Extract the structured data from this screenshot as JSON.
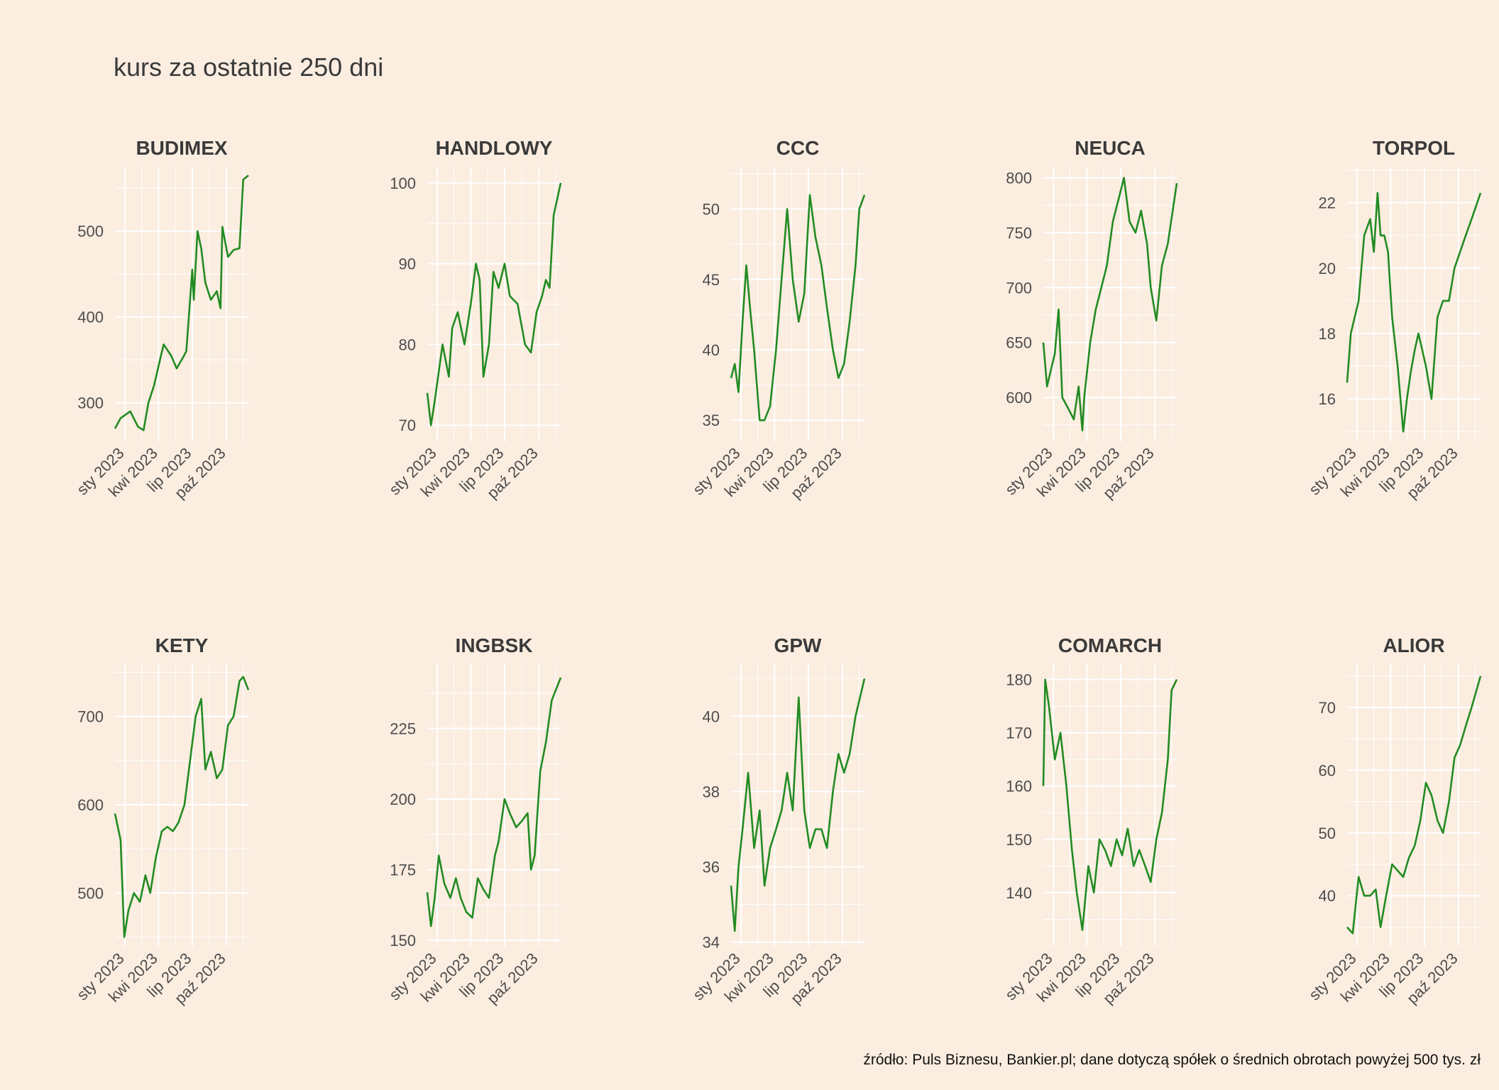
{
  "title": "kurs za ostatnie 250 dni",
  "caption": "źródło: Puls Biznesu, Bankier.pl; dane dotyczą spółek o średnich obrotach powyżej 500 tys. zł",
  "colors": {
    "background": "#fbede0",
    "line": "#228b22",
    "grid": "#ffffff",
    "text": "#4d4d4d",
    "strip": "#3a3a3a"
  },
  "chart_data": [
    {
      "type": "line",
      "title": "BUDIMEX",
      "x_range": [
        "2022-12-05",
        "2023-11-29"
      ],
      "x_ticks": [
        "2023-01-01",
        "2023-04-01",
        "2023-07-01",
        "2023-10-01"
      ],
      "x_tick_labels": [
        "sty 2023",
        "kwi 2023",
        "lip 2023",
        "paź 2023"
      ],
      "ylim": [
        255,
        575
      ],
      "y_ticks": [
        300,
        400,
        500
      ],
      "grid": true,
      "series": [
        {
          "x": [
            "2022-12-05",
            "2022-12-20",
            "2023-01-15",
            "2023-02-05",
            "2023-02-20",
            "2023-03-05",
            "2023-03-20",
            "2023-04-05",
            "2023-04-15",
            "2023-05-05",
            "2023-05-20",
            "2023-06-05",
            "2023-06-15",
            "2023-07-01",
            "2023-07-05",
            "2023-07-15",
            "2023-07-25",
            "2023-08-05",
            "2023-08-20",
            "2023-09-05",
            "2023-09-15",
            "2023-09-20",
            "2023-10-05",
            "2023-10-20",
            "2023-11-05",
            "2023-11-15",
            "2023-11-29"
          ],
          "y": [
            270,
            282,
            290,
            272,
            268,
            300,
            320,
            350,
            368,
            355,
            340,
            352,
            360,
            455,
            420,
            500,
            480,
            440,
            420,
            430,
            410,
            505,
            470,
            478,
            480,
            560,
            565
          ]
        }
      ]
    },
    {
      "type": "line",
      "title": "HANDLOWY",
      "x_range": [
        "2022-12-05",
        "2023-11-29"
      ],
      "x_ticks": [
        "2023-01-01",
        "2023-04-01",
        "2023-07-01",
        "2023-10-01"
      ],
      "x_tick_labels": [
        "sty 2023",
        "kwi 2023",
        "lip 2023",
        "paź 2023"
      ],
      "ylim": [
        68,
        102
      ],
      "y_ticks": [
        70,
        80,
        90,
        100
      ],
      "grid": true,
      "series": [
        {
          "x": [
            "2022-12-05",
            "2022-12-15",
            "2022-12-25",
            "2023-01-15",
            "2023-02-01",
            "2023-02-10",
            "2023-02-25",
            "2023-03-15",
            "2023-04-01",
            "2023-04-15",
            "2023-04-25",
            "2023-05-05",
            "2023-05-20",
            "2023-06-01",
            "2023-06-15",
            "2023-07-01",
            "2023-07-15",
            "2023-08-05",
            "2023-08-25",
            "2023-09-10",
            "2023-09-25",
            "2023-10-10",
            "2023-10-20",
            "2023-10-30",
            "2023-11-10",
            "2023-11-29"
          ],
          "y": [
            74,
            70,
            73,
            80,
            76,
            82,
            84,
            80,
            85,
            90,
            88,
            76,
            80,
            89,
            87,
            90,
            86,
            85,
            80,
            79,
            84,
            86,
            88,
            87,
            96,
            100
          ]
        }
      ]
    },
    {
      "type": "line",
      "title": "CCC",
      "x_range": [
        "2022-12-05",
        "2023-11-29"
      ],
      "x_ticks": [
        "2023-01-01",
        "2023-04-01",
        "2023-07-01",
        "2023-10-01"
      ],
      "x_tick_labels": [
        "sty 2023",
        "kwi 2023",
        "lip 2023",
        "paź 2023"
      ],
      "ylim": [
        33.5,
        53
      ],
      "y_ticks": [
        35,
        40,
        45,
        50
      ],
      "grid": true,
      "series": [
        {
          "x": [
            "2022-12-05",
            "2022-12-15",
            "2022-12-25",
            "2023-01-05",
            "2023-01-15",
            "2023-01-25",
            "2023-02-05",
            "2023-02-20",
            "2023-03-05",
            "2023-03-20",
            "2023-04-05",
            "2023-04-20",
            "2023-05-05",
            "2023-05-20",
            "2023-06-05",
            "2023-06-20",
            "2023-07-05",
            "2023-07-20",
            "2023-08-05",
            "2023-08-20",
            "2023-09-05",
            "2023-09-20",
            "2023-10-05",
            "2023-10-20",
            "2023-11-05",
            "2023-11-15",
            "2023-11-29"
          ],
          "y": [
            38,
            39,
            37,
            42,
            46,
            43,
            40,
            35,
            35,
            36,
            40,
            45,
            50,
            45,
            42,
            44,
            51,
            48,
            46,
            43,
            40,
            38,
            39,
            42,
            46,
            50,
            51
          ]
        }
      ]
    },
    {
      "type": "line",
      "title": "NEUCA",
      "x_range": [
        "2022-12-05",
        "2023-11-29"
      ],
      "x_ticks": [
        "2023-01-01",
        "2023-04-01",
        "2023-07-01",
        "2023-10-01"
      ],
      "x_tick_labels": [
        "sty 2023",
        "kwi 2023",
        "lip 2023",
        "paź 2023"
      ],
      "ylim": [
        560,
        810
      ],
      "y_ticks": [
        600,
        650,
        700,
        750,
        800
      ],
      "grid": true,
      "series": [
        {
          "x": [
            "2022-12-05",
            "2022-12-15",
            "2023-01-05",
            "2023-01-15",
            "2023-01-25",
            "2023-02-10",
            "2023-02-25",
            "2023-03-10",
            "2023-03-20",
            "2023-03-25",
            "2023-04-10",
            "2023-04-25",
            "2023-05-10",
            "2023-05-25",
            "2023-06-10",
            "2023-06-25",
            "2023-07-10",
            "2023-07-25",
            "2023-08-10",
            "2023-08-25",
            "2023-09-10",
            "2023-09-20",
            "2023-10-05",
            "2023-10-20",
            "2023-11-05",
            "2023-11-29"
          ],
          "y": [
            650,
            610,
            640,
            680,
            600,
            590,
            580,
            610,
            570,
            600,
            650,
            680,
            700,
            720,
            760,
            780,
            800,
            760,
            750,
            770,
            740,
            700,
            670,
            720,
            740,
            795
          ]
        }
      ]
    },
    {
      "type": "line",
      "title": "TORPOL",
      "x_range": [
        "2022-12-05",
        "2023-11-29"
      ],
      "x_ticks": [
        "2023-01-01",
        "2023-04-01",
        "2023-07-01",
        "2023-10-01"
      ],
      "x_tick_labels": [
        "sty 2023",
        "kwi 2023",
        "lip 2023",
        "paź 2023"
      ],
      "ylim": [
        14.7,
        23.1
      ],
      "y_ticks": [
        16,
        18,
        20,
        22
      ],
      "grid": true,
      "series": [
        {
          "x": [
            "2022-12-05",
            "2022-12-15",
            "2023-01-05",
            "2023-01-20",
            "2023-02-05",
            "2023-02-15",
            "2023-02-25",
            "2023-03-05",
            "2023-03-15",
            "2023-03-25",
            "2023-04-05",
            "2023-04-20",
            "2023-05-05",
            "2023-05-15",
            "2023-05-25",
            "2023-06-05",
            "2023-06-15",
            "2023-06-25",
            "2023-07-05",
            "2023-07-20",
            "2023-08-05",
            "2023-08-20",
            "2023-09-05",
            "2023-09-20",
            "2023-10-05",
            "2023-10-20",
            "2023-11-05",
            "2023-11-29"
          ],
          "y": [
            16.5,
            18,
            19,
            21,
            21.5,
            20.5,
            22.3,
            21,
            21,
            20.5,
            18.5,
            17,
            15,
            16,
            16.8,
            17.5,
            18,
            17.5,
            17,
            16,
            18.5,
            19,
            19,
            20,
            20.5,
            21,
            21.5,
            22.3
          ]
        }
      ]
    },
    {
      "type": "line",
      "title": "KETY",
      "x_range": [
        "2022-12-05",
        "2023-11-29"
      ],
      "x_ticks": [
        "2023-01-01",
        "2023-04-01",
        "2023-07-01",
        "2023-10-01"
      ],
      "x_tick_labels": [
        "sty 2023",
        "kwi 2023",
        "lip 2023",
        "paź 2023"
      ],
      "ylim": [
        440,
        760
      ],
      "y_ticks": [
        500,
        600,
        700
      ],
      "grid": true,
      "series": [
        {
          "x": [
            "2022-12-05",
            "2022-12-20",
            "2022-12-30",
            "2023-01-10",
            "2023-01-25",
            "2023-02-10",
            "2023-02-25",
            "2023-03-10",
            "2023-03-25",
            "2023-04-10",
            "2023-04-25",
            "2023-05-10",
            "2023-05-25",
            "2023-06-10",
            "2023-06-25",
            "2023-07-10",
            "2023-07-25",
            "2023-08-05",
            "2023-08-20",
            "2023-09-05",
            "2023-09-20",
            "2023-10-05",
            "2023-10-20",
            "2023-11-05",
            "2023-11-15",
            "2023-11-29"
          ],
          "y": [
            590,
            560,
            450,
            480,
            500,
            490,
            520,
            500,
            540,
            570,
            575,
            570,
            580,
            600,
            650,
            700,
            720,
            640,
            660,
            630,
            640,
            690,
            700,
            740,
            745,
            730
          ]
        }
      ]
    },
    {
      "type": "line",
      "title": "INGBSK",
      "x_range": [
        "2022-12-05",
        "2023-11-29"
      ],
      "x_ticks": [
        "2023-01-01",
        "2023-04-01",
        "2023-07-01",
        "2023-10-01"
      ],
      "x_tick_labels": [
        "sty 2023",
        "kwi 2023",
        "lip 2023",
        "paź 2023"
      ],
      "ylim": [
        148,
        248
      ],
      "y_ticks": [
        150,
        175,
        200,
        225
      ],
      "grid": true,
      "series": [
        {
          "x": [
            "2022-12-05",
            "2022-12-15",
            "2022-12-25",
            "2023-01-05",
            "2023-01-20",
            "2023-02-05",
            "2023-02-20",
            "2023-03-05",
            "2023-03-20",
            "2023-04-05",
            "2023-04-20",
            "2023-05-05",
            "2023-05-20",
            "2023-06-05",
            "2023-06-15",
            "2023-07-01",
            "2023-07-15",
            "2023-08-01",
            "2023-08-15",
            "2023-09-01",
            "2023-09-10",
            "2023-09-20",
            "2023-10-05",
            "2023-10-20",
            "2023-11-05",
            "2023-11-29"
          ],
          "y": [
            167,
            155,
            165,
            180,
            170,
            165,
            172,
            165,
            160,
            158,
            172,
            168,
            165,
            180,
            185,
            200,
            195,
            190,
            192,
            195,
            175,
            180,
            210,
            220,
            235,
            243
          ]
        }
      ]
    },
    {
      "type": "line",
      "title": "GPW",
      "x_range": [
        "2022-12-05",
        "2023-11-29"
      ],
      "x_ticks": [
        "2023-01-01",
        "2023-04-01",
        "2023-07-01",
        "2023-10-01"
      ],
      "x_tick_labels": [
        "sty 2023",
        "kwi 2023",
        "lip 2023",
        "paź 2023"
      ],
      "ylim": [
        33.9,
        41.4
      ],
      "y_ticks": [
        34,
        36,
        38,
        40
      ],
      "grid": true,
      "series": [
        {
          "x": [
            "2022-12-05",
            "2022-12-15",
            "2022-12-25",
            "2023-01-05",
            "2023-01-20",
            "2023-02-05",
            "2023-02-20",
            "2023-03-05",
            "2023-03-20",
            "2023-04-05",
            "2023-04-20",
            "2023-05-05",
            "2023-05-20",
            "2023-06-05",
            "2023-06-20",
            "2023-07-05",
            "2023-07-20",
            "2023-08-05",
            "2023-08-20",
            "2023-09-05",
            "2023-09-20",
            "2023-10-05",
            "2023-10-20",
            "2023-11-05",
            "2023-11-29"
          ],
          "y": [
            35.5,
            34.3,
            36,
            37,
            38.5,
            36.5,
            37.5,
            35.5,
            36.5,
            37,
            37.5,
            38.5,
            37.5,
            40.5,
            37.5,
            36.5,
            37,
            37,
            36.5,
            38,
            39,
            38.5,
            39,
            40,
            41
          ]
        }
      ]
    },
    {
      "type": "line",
      "title": "COMARCH",
      "x_range": [
        "2022-12-05",
        "2023-11-29"
      ],
      "x_ticks": [
        "2023-01-01",
        "2023-04-01",
        "2023-07-01",
        "2023-10-01"
      ],
      "x_tick_labels": [
        "sty 2023",
        "kwi 2023",
        "lip 2023",
        "paź 2023"
      ],
      "ylim": [
        130,
        183
      ],
      "y_ticks": [
        140,
        150,
        160,
        170,
        180
      ],
      "grid": true,
      "series": [
        {
          "x": [
            "2022-12-05",
            "2022-12-10",
            "2022-12-20",
            "2023-01-05",
            "2023-01-20",
            "2023-02-05",
            "2023-02-20",
            "2023-03-05",
            "2023-03-20",
            "2023-04-05",
            "2023-04-20",
            "2023-05-05",
            "2023-05-20",
            "2023-06-05",
            "2023-06-20",
            "2023-07-05",
            "2023-07-20",
            "2023-08-05",
            "2023-08-20",
            "2023-09-05",
            "2023-09-20",
            "2023-10-05",
            "2023-10-20",
            "2023-11-05",
            "2023-11-15",
            "2023-11-29"
          ],
          "y": [
            160,
            180,
            175,
            165,
            170,
            160,
            148,
            140,
            133,
            145,
            140,
            150,
            148,
            145,
            150,
            147,
            152,
            145,
            148,
            145,
            142,
            150,
            155,
            165,
            178,
            180
          ]
        }
      ]
    },
    {
      "type": "line",
      "title": "ALIOR",
      "x_range": [
        "2022-12-05",
        "2023-11-29"
      ],
      "x_ticks": [
        "2023-01-01",
        "2023-04-01",
        "2023-07-01",
        "2023-10-01"
      ],
      "x_tick_labels": [
        "sty 2023",
        "kwi 2023",
        "lip 2023",
        "paź 2023"
      ],
      "ylim": [
        32,
        77
      ],
      "y_ticks": [
        40,
        50,
        60,
        70
      ],
      "grid": true,
      "series": [
        {
          "x": [
            "2022-12-05",
            "2022-12-20",
            "2023-01-05",
            "2023-01-20",
            "2023-02-05",
            "2023-02-20",
            "2023-03-05",
            "2023-03-20",
            "2023-04-05",
            "2023-04-20",
            "2023-05-05",
            "2023-05-20",
            "2023-06-05",
            "2023-06-20",
            "2023-07-05",
            "2023-07-20",
            "2023-08-05",
            "2023-08-20",
            "2023-09-05",
            "2023-09-20",
            "2023-10-05",
            "2023-10-20",
            "2023-11-05",
            "2023-11-29"
          ],
          "y": [
            35,
            34,
            43,
            40,
            40,
            41,
            35,
            40,
            45,
            44,
            43,
            46,
            48,
            52,
            58,
            56,
            52,
            50,
            55,
            62,
            64,
            67,
            70,
            75
          ]
        }
      ]
    }
  ]
}
